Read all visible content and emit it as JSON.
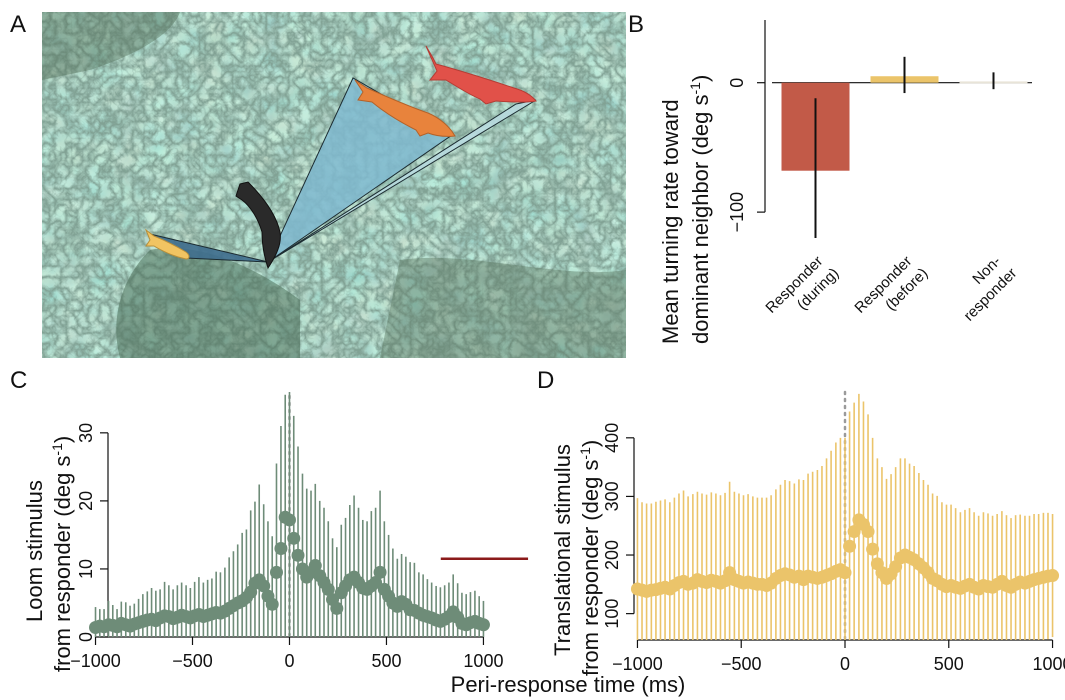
{
  "panels": {
    "a": {
      "letter": "A"
    },
    "b": {
      "letter": "B"
    },
    "c": {
      "letter": "C"
    },
    "d": {
      "letter": "D"
    }
  },
  "shared_xlabel": "Peri-response time (ms)",
  "chart_data": [
    {
      "panel": "B",
      "type": "bar",
      "categories": [
        "Responder (during)",
        "Responder (before)",
        "Non-responder"
      ],
      "category_label_lines": [
        [
          "Responder",
          "(during)"
        ],
        [
          "Responder",
          "(before)"
        ],
        [
          "Non-",
          "responder"
        ]
      ],
      "values": [
        -68,
        5,
        1
      ],
      "error_low": [
        -120,
        -8,
        -5
      ],
      "error_high": [
        -12,
        20,
        8
      ],
      "colors": [
        "#c25a48",
        "#ebc46a",
        "#e8e4d8"
      ],
      "ylabel_lines": [
        "Mean turning rate toward",
        "dominant neighbor (deg s",
        "-1",
        ")"
      ],
      "yticks": [
        -100,
        0
      ],
      "ylim": [
        -120,
        50
      ],
      "grid": false
    },
    {
      "panel": "C",
      "type": "scatter",
      "series": [
        {
          "color": "#6e8c78"
        }
      ],
      "x": [
        -1000,
        -978,
        -956,
        -933,
        -911,
        -889,
        -867,
        -844,
        -822,
        -800,
        -778,
        -756,
        -733,
        -711,
        -689,
        -667,
        -644,
        -622,
        -600,
        -578,
        -556,
        -533,
        -511,
        -489,
        -467,
        -444,
        -422,
        -400,
        -378,
        -356,
        -333,
        -311,
        -289,
        -267,
        -244,
        -222,
        -200,
        -178,
        -156,
        -133,
        -111,
        -89,
        -67,
        -44,
        -22,
        0,
        22,
        44,
        67,
        89,
        111,
        133,
        156,
        178,
        200,
        222,
        244,
        267,
        289,
        311,
        333,
        356,
        378,
        400,
        422,
        444,
        467,
        489,
        511,
        533,
        556,
        578,
        600,
        622,
        644,
        667,
        689,
        711,
        733,
        756,
        778,
        800,
        822,
        844,
        867,
        889,
        911,
        933,
        956,
        978,
        1000
      ],
      "y": [
        1.4,
        1.6,
        1.5,
        1.8,
        1.7,
        1.5,
        2.0,
        1.8,
        1.6,
        1.9,
        2.1,
        2.3,
        2.5,
        2.6,
        2.4,
        2.8,
        3.1,
        3.0,
        2.7,
        2.9,
        3.2,
        3.0,
        2.8,
        3.1,
        3.3,
        3.0,
        3.2,
        3.4,
        3.6,
        3.5,
        3.8,
        4.2,
        4.6,
        5.0,
        5.3,
        5.8,
        6.6,
        7.9,
        8.4,
        7.5,
        6.0,
        4.8,
        9.5,
        13,
        17.6,
        17.2,
        14.5,
        12,
        10.0,
        8.8,
        9.5,
        10.5,
        9.0,
        8.0,
        7.0,
        5.5,
        4.2,
        6.5,
        7.5,
        8.4,
        8.8,
        8.0,
        7.2,
        7.0,
        7.5,
        8.0,
        9.5,
        7.0,
        6.0,
        5.0,
        4.5,
        5.2,
        4.8,
        4.0,
        3.9,
        3.5,
        3.2,
        3.0,
        2.8,
        2.5,
        2.3,
        2.6,
        3.0,
        3.7,
        2.9,
        2.0,
        1.8,
        2.1,
        2.3,
        2.0,
        1.8
      ],
      "err": [
        3,
        2.5,
        2.6,
        3.5,
        3.0,
        2.6,
        3.2,
        3.3,
        3.0,
        3.0,
        3.5,
        4.0,
        4.2,
        4.6,
        4.4,
        4.2,
        5.0,
        4.6,
        4.3,
        4.7,
        4.8,
        4.6,
        4.4,
        5.0,
        5.5,
        5.0,
        5.2,
        5.2,
        6.0,
        6.0,
        6.4,
        7.5,
        8.0,
        8.6,
        10,
        10,
        12,
        12,
        14,
        12,
        11,
        10,
        16,
        18,
        18,
        20,
        18,
        16,
        14,
        13,
        12,
        12,
        11,
        11,
        10,
        9,
        9,
        10,
        10,
        11,
        12,
        11,
        10,
        10,
        11,
        11,
        12,
        10,
        9,
        8,
        7,
        7,
        7,
        7,
        7,
        6,
        6,
        5.5,
        5.2,
        5,
        5,
        5,
        5,
        5.5,
        5,
        4.5,
        4.5,
        4.5,
        4.5,
        4,
        3.5
      ],
      "yticks": [
        0,
        10,
        20,
        30
      ],
      "xticks": [
        -1000,
        -500,
        0,
        500,
        1000
      ],
      "xlim": [
        -1080,
        1240
      ],
      "ylim": [
        0,
        36
      ],
      "ylabel_lines": [
        "Loom stimulus",
        "from responder (deg s",
        "-1",
        ")"
      ],
      "threshold": {
        "value": 11.5,
        "x_from": 780,
        "x_to": 1230,
        "color": "#8b1a1a"
      },
      "grid": false
    },
    {
      "panel": "D",
      "type": "scatter",
      "series": [
        {
          "color": "#ebc46a"
        }
      ],
      "x": [
        -1000,
        -978,
        -956,
        -933,
        -911,
        -889,
        -867,
        -844,
        -822,
        -800,
        -778,
        -756,
        -733,
        -711,
        -689,
        -667,
        -644,
        -622,
        -600,
        -578,
        -556,
        -533,
        -511,
        -489,
        -467,
        -444,
        -422,
        -400,
        -378,
        -356,
        -333,
        -311,
        -289,
        -267,
        -244,
        -222,
        -200,
        -178,
        -156,
        -133,
        -111,
        -89,
        -67,
        -44,
        -22,
        0,
        22,
        44,
        67,
        89,
        111,
        133,
        156,
        178,
        200,
        222,
        244,
        267,
        289,
        311,
        333,
        356,
        378,
        400,
        422,
        444,
        467,
        489,
        511,
        533,
        556,
        578,
        600,
        622,
        644,
        667,
        689,
        711,
        733,
        756,
        778,
        800,
        822,
        844,
        867,
        889,
        911,
        933,
        956,
        978,
        1000
      ],
      "y": [
        142,
        140,
        138,
        140,
        141,
        143,
        145,
        142,
        148,
        153,
        155,
        150,
        152,
        158,
        155,
        153,
        157,
        155,
        152,
        156,
        170,
        158,
        155,
        152,
        154,
        152,
        150,
        150,
        148,
        152,
        160,
        165,
        168,
        166,
        162,
        164,
        158,
        164,
        162,
        160,
        162,
        165,
        168,
        172,
        175,
        170,
        215,
        240,
        260,
        252,
        240,
        210,
        185,
        170,
        160,
        168,
        180,
        195,
        200,
        196,
        192,
        185,
        178,
        170,
        160,
        156,
        150,
        146,
        148,
        145,
        143,
        147,
        150,
        145,
        142,
        148,
        146,
        145,
        150,
        155,
        148,
        145,
        150,
        154,
        152,
        155,
        158,
        160,
        162,
        164,
        165
      ],
      "err": [
        155,
        150,
        150,
        148,
        150,
        150,
        150,
        148,
        150,
        152,
        155,
        150,
        152,
        150,
        150,
        150,
        150,
        150,
        150,
        150,
        155,
        150,
        150,
        150,
        150,
        148,
        148,
        148,
        150,
        150,
        152,
        155,
        160,
        160,
        160,
        165,
        170,
        175,
        180,
        185,
        190,
        200,
        210,
        220,
        225,
        230,
        230,
        220,
        215,
        210,
        200,
        190,
        180,
        180,
        170,
        170,
        170,
        170,
        165,
        160,
        160,
        155,
        150,
        150,
        145,
        145,
        140,
        140,
        138,
        135,
        130,
        130,
        130,
        128,
        125,
        125,
        125,
        122,
        120,
        120,
        120,
        118,
        118,
        115,
        115,
        112,
        112,
        110,
        110,
        108,
        105
      ],
      "yticks": [
        100,
        200,
        300,
        400
      ],
      "xticks": [
        -1000,
        -500,
        0,
        500,
        1000
      ],
      "xlim": [
        -1060,
        1060
      ],
      "ylim": [
        55,
        485
      ],
      "ylabel_lines": [
        "Translational stimulus",
        "from responder (deg s",
        "-1",
        ")"
      ],
      "grid": false
    }
  ]
}
